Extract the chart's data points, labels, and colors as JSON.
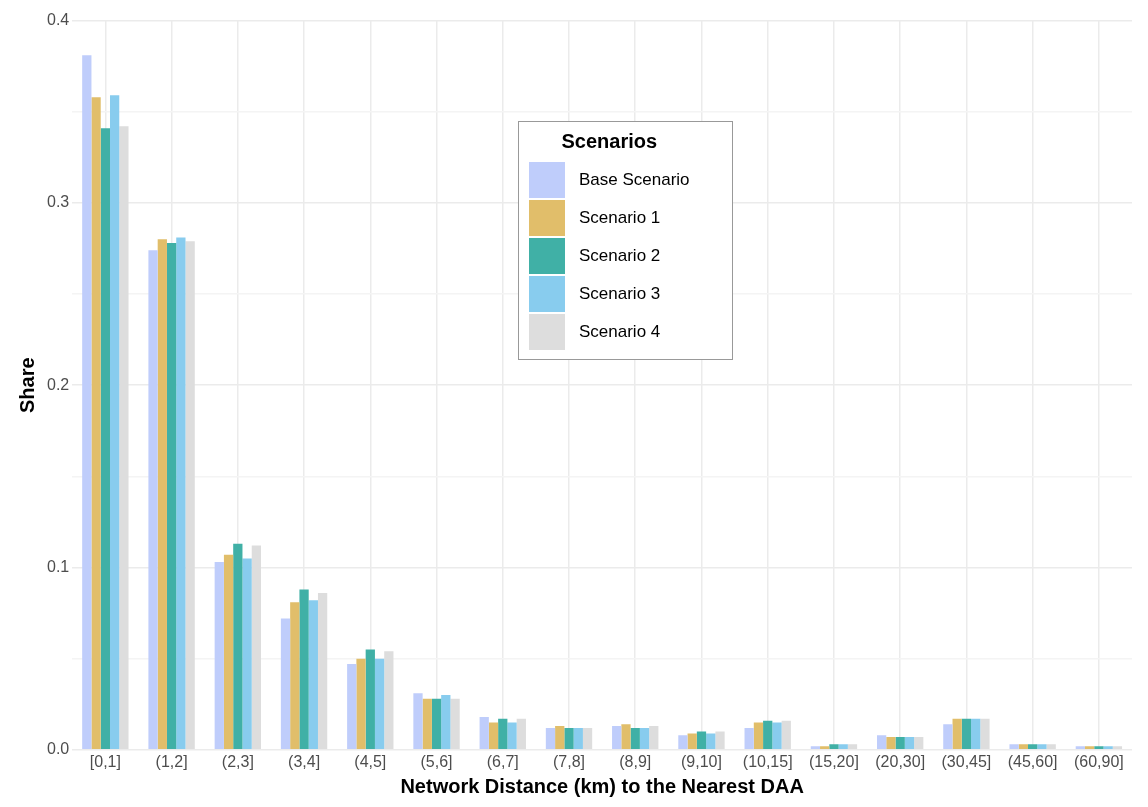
{
  "chart_data": {
    "type": "bar",
    "xlabel": "Network Distance (km) to the Nearest DAA",
    "ylabel": "Share",
    "legend_title": "Scenarios",
    "legend": "top",
    "grid": true,
    "categories": [
      "[0,1]",
      "(1,2]",
      "(2,3]",
      "(3,4]",
      "(4,5]",
      "(5,6]",
      "(6,7]",
      "(7,8]",
      "(8,9]",
      "(9,10]",
      "(10,15]",
      "(15,20]",
      "(20,30]",
      "(30,45]",
      "(45,60]",
      "(60,90]"
    ],
    "ylim": [
      0,
      0.4
    ],
    "yticks": [
      {
        "value": 0,
        "label": "0.0"
      },
      {
        "value": 0.05,
        "label": null
      },
      0.1,
      {
        "value": 0.15,
        "label": null
      },
      0.2,
      {
        "value": 0.25,
        "label": null
      },
      0.3,
      {
        "value": 0.35,
        "label": null
      },
      0.4
    ],
    "series": [
      {
        "name": "Base Scenario",
        "color": "#bfcdfb",
        "values": [
          0.381,
          0.274,
          0.103,
          0.072,
          0.047,
          0.031,
          0.018,
          0.012,
          0.013,
          0.008,
          0.012,
          0.002,
          0.008,
          0.014,
          0.003,
          0.002
        ]
      },
      {
        "name": "Scenario 1",
        "color": "#e1be6a",
        "values": [
          0.358,
          0.28,
          0.107,
          0.081,
          0.05,
          0.028,
          0.015,
          0.013,
          0.014,
          0.009,
          0.015,
          0.002,
          0.007,
          0.017,
          0.003,
          0.002
        ]
      },
      {
        "name": "Scenario 2",
        "color": "#40b0a6",
        "values": [
          0.341,
          0.278,
          0.113,
          0.088,
          0.055,
          0.028,
          0.017,
          0.012,
          0.012,
          0.01,
          0.016,
          0.003,
          0.007,
          0.017,
          0.003,
          0.002
        ]
      },
      {
        "name": "Scenario 3",
        "color": "#88ccee",
        "values": [
          0.359,
          0.281,
          0.105,
          0.082,
          0.05,
          0.03,
          0.015,
          0.012,
          0.012,
          0.009,
          0.015,
          0.003,
          0.007,
          0.017,
          0.003,
          0.002
        ]
      },
      {
        "name": "Scenario 4",
        "color": "#dddddd",
        "values": [
          0.342,
          0.279,
          0.112,
          0.086,
          0.054,
          0.028,
          0.017,
          0.012,
          0.013,
          0.01,
          0.016,
          0.003,
          0.007,
          0.017,
          0.003,
          0.002
        ]
      }
    ]
  }
}
